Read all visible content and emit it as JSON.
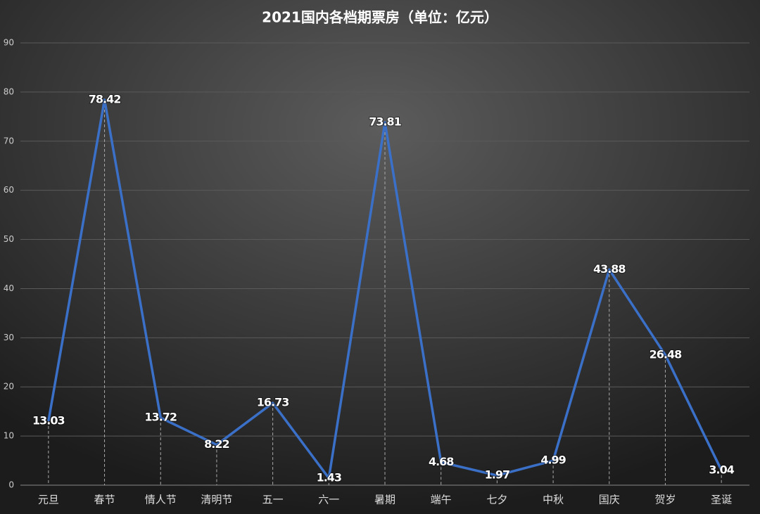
{
  "chart_data": {
    "type": "line",
    "title": "2021国内各档期票房（单位：亿元）",
    "categories": [
      "元旦",
      "春节",
      "情人节",
      "清明节",
      "五一",
      "六一",
      "暑期",
      "端午",
      "七夕",
      "中秋",
      "国庆",
      "贺岁",
      "圣诞"
    ],
    "values": [
      13.03,
      78.42,
      13.72,
      8.22,
      16.73,
      1.43,
      73.81,
      4.68,
      1.97,
      4.99,
      43.88,
      26.48,
      3.04
    ],
    "color": "#3b70c8",
    "ylim": [
      0,
      90
    ],
    "yticks": [
      0,
      10,
      20,
      30,
      40,
      50,
      60,
      70,
      80,
      90
    ],
    "grid": true
  }
}
